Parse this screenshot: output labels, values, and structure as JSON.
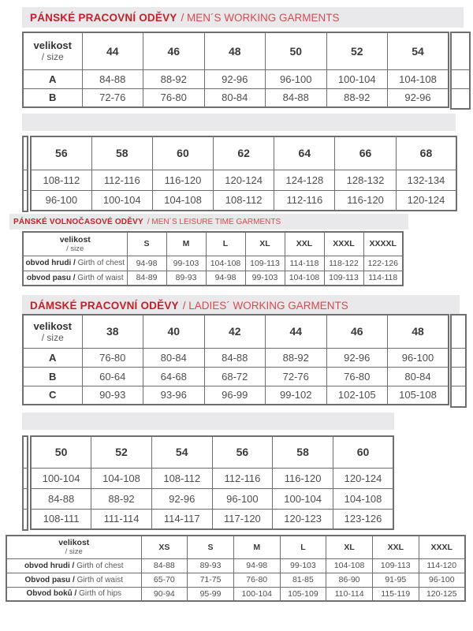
{
  "colors": {
    "title_red_bold": "#c32028",
    "title_red_light": "#d8494e",
    "band_gray": "#e9e9eb",
    "table_border_gray": "#6f6f6f"
  },
  "sections": {
    "mens_working": {
      "title_cz": "PÁNSKÉ PRACOVNÍ ODĚVY",
      "title_en": "/ MEN´S WORKING GARMENTS"
    },
    "mens_leisure": {
      "title_cz": "PÁNSKÉ VOLNOČASOVÉ ODĚVY",
      "title_en": "/ MEN´S LEISURE TIME GARMENTS"
    },
    "ladies_working": {
      "title_cz": "DÁMSKÉ PRACOVNÍ ODĚVY",
      "title_en": "/ LADIES´ WORKING GARMENTS"
    }
  },
  "tables": {
    "mens_working_1": {
      "header_label": {
        "cz": "velikost",
        "en": "/ size"
      },
      "sizes": [
        "44",
        "46",
        "48",
        "50",
        "52",
        "54"
      ],
      "rows": [
        {
          "label": "A",
          "values": [
            "84-88",
            "88-92",
            "92-96",
            "96-100",
            "100-104",
            "104-108"
          ]
        },
        {
          "label": "B",
          "values": [
            "72-76",
            "76-80",
            "80-84",
            "84-88",
            "88-92",
            "92-96"
          ]
        }
      ]
    },
    "mens_working_2": {
      "sizes": [
        "56",
        "58",
        "60",
        "62",
        "64",
        "66",
        "68"
      ],
      "rows": [
        {
          "values": [
            "108-112",
            "112-116",
            "116-120",
            "120-124",
            "124-128",
            "128-132",
            "132-134"
          ]
        },
        {
          "values": [
            "96-100",
            "100-104",
            "104-108",
            "108-112",
            "112-116",
            "116-120",
            "120-124"
          ]
        }
      ]
    },
    "mens_leisure": {
      "header_label": {
        "cz": "velikost",
        "en": "/ size"
      },
      "sizes": [
        "S",
        "M",
        "L",
        "XL",
        "XXL",
        "XXXL",
        "XXXXL"
      ],
      "rows": [
        {
          "label_cz": "obvod hrudi /",
          "label_en": "Girth of chest",
          "values": [
            "94-98",
            "99-103",
            "104-108",
            "109-113",
            "114-118",
            "118-122",
            "122-126"
          ]
        },
        {
          "label_cz": "obvod pasu /",
          "label_en": "Girth of waist",
          "values": [
            "84-89",
            "89-93",
            "94-98",
            "99-103",
            "104-108",
            "109-113",
            "114-118"
          ]
        }
      ]
    },
    "ladies_working_1": {
      "header_label": {
        "cz": "velikost",
        "en": "/ size"
      },
      "sizes": [
        "38",
        "40",
        "42",
        "44",
        "46",
        "48"
      ],
      "rows": [
        {
          "label": "A",
          "values": [
            "76-80",
            "80-84",
            "84-88",
            "88-92",
            "92-96",
            "96-100"
          ]
        },
        {
          "label": "B",
          "values": [
            "60-64",
            "64-68",
            "68-72",
            "72-76",
            "76-80",
            "80-84"
          ]
        },
        {
          "label": "C",
          "values": [
            "90-93",
            "93-96",
            "96-99",
            "99-102",
            "102-105",
            "105-108"
          ]
        }
      ]
    },
    "ladies_working_2": {
      "sizes": [
        "50",
        "52",
        "54",
        "56",
        "58",
        "60"
      ],
      "rows": [
        {
          "values": [
            "100-104",
            "104-108",
            "108-112",
            "112-116",
            "116-120",
            "120-124"
          ]
        },
        {
          "values": [
            "84-88",
            "88-92",
            "92-96",
            "96-100",
            "100-104",
            "104-108"
          ]
        },
        {
          "values": [
            "108-111",
            "111-114",
            "114-117",
            "117-120",
            "120-123",
            "123-126"
          ]
        }
      ]
    },
    "ladies_sizes": {
      "header_label": {
        "cz": "velikost",
        "en": "/ size"
      },
      "sizes": [
        "XS",
        "S",
        "M",
        "L",
        "XL",
        "XXL",
        "XXXL"
      ],
      "rows": [
        {
          "label_cz": "obvod hrudi /",
          "label_en": "Girth of chest",
          "values": [
            "84-88",
            "89-93",
            "94-98",
            "99-103",
            "104-108",
            "109-113",
            "114-120"
          ]
        },
        {
          "label_cz": "Obvod pasu /",
          "label_en": "Girth of waist",
          "values": [
            "65-70",
            "71-75",
            "76-80",
            "81-85",
            "86-90",
            "91-95",
            "96-100"
          ]
        },
        {
          "label_cz": "Obvod boků /",
          "label_en": "Girth of hips",
          "values": [
            "90-94",
            "95-99",
            "100-104",
            "105-109",
            "110-114",
            "115-119",
            "120-125"
          ]
        }
      ]
    }
  }
}
